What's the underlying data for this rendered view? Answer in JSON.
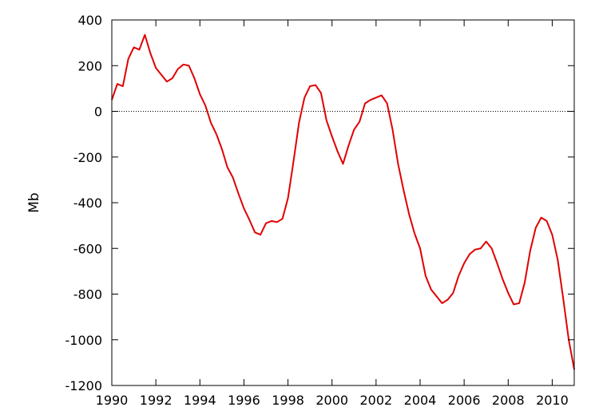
{
  "chart_data": {
    "type": "line",
    "title": "",
    "xlabel": "",
    "ylabel": "Mb",
    "xlim": [
      1990,
      2011
    ],
    "ylim": [
      -1200,
      400
    ],
    "grid": false,
    "legend": "none",
    "x_ticks": [
      1990,
      1992,
      1994,
      1996,
      1998,
      2000,
      2002,
      2004,
      2006,
      2008,
      2010
    ],
    "y_ticks": [
      -1200,
      -1000,
      -800,
      -600,
      -400,
      -200,
      0,
      200,
      400
    ],
    "reference_lines": [
      {
        "axis": "y",
        "value": 0,
        "style": "dotted"
      }
    ],
    "series": [
      {
        "color": "#e00000",
        "x": [
          1990.0,
          1990.25,
          1990.5,
          1990.75,
          1991.0,
          1991.25,
          1991.5,
          1991.75,
          1992.0,
          1992.25,
          1992.5,
          1992.75,
          1993.0,
          1993.25,
          1993.5,
          1993.75,
          1994.0,
          1994.25,
          1994.5,
          1994.75,
          1995.0,
          1995.25,
          1995.5,
          1995.75,
          1996.0,
          1996.25,
          1996.5,
          1996.75,
          1997.0,
          1997.25,
          1997.5,
          1997.75,
          1998.0,
          1998.25,
          1998.5,
          1998.75,
          1999.0,
          1999.25,
          1999.5,
          1999.75,
          2000.0,
          2000.25,
          2000.5,
          2000.75,
          2001.0,
          2001.25,
          2001.5,
          2001.75,
          2002.0,
          2002.25,
          2002.5,
          2002.75,
          2003.0,
          2003.25,
          2003.5,
          2003.75,
          2004.0,
          2004.25,
          2004.5,
          2004.75,
          2005.0,
          2005.25,
          2005.5,
          2005.75,
          2006.0,
          2006.25,
          2006.5,
          2006.75,
          2007.0,
          2007.25,
          2007.5,
          2007.75,
          2008.0,
          2008.25,
          2008.5,
          2008.75,
          2009.0,
          2009.25,
          2009.5,
          2009.75,
          2010.0,
          2010.25,
          2010.5,
          2010.75,
          2011.0
        ],
        "y": [
          50,
          120,
          110,
          230,
          280,
          270,
          335,
          255,
          190,
          160,
          130,
          145,
          185,
          205,
          200,
          145,
          75,
          25,
          -50,
          -100,
          -165,
          -245,
          -290,
          -360,
          -425,
          -475,
          -530,
          -540,
          -490,
          -480,
          -485,
          -470,
          -380,
          -220,
          -50,
          60,
          110,
          115,
          80,
          -40,
          -110,
          -175,
          -230,
          -150,
          -80,
          -45,
          35,
          50,
          60,
          70,
          35,
          -80,
          -230,
          -345,
          -450,
          -535,
          -600,
          -720,
          -780,
          -810,
          -840,
          -825,
          -795,
          -720,
          -665,
          -625,
          -605,
          -600,
          -570,
          -600,
          -665,
          -735,
          -795,
          -845,
          -840,
          -750,
          -610,
          -510,
          -465,
          -480,
          -540,
          -650,
          -820,
          -1000,
          -1130
        ]
      }
    ]
  }
}
